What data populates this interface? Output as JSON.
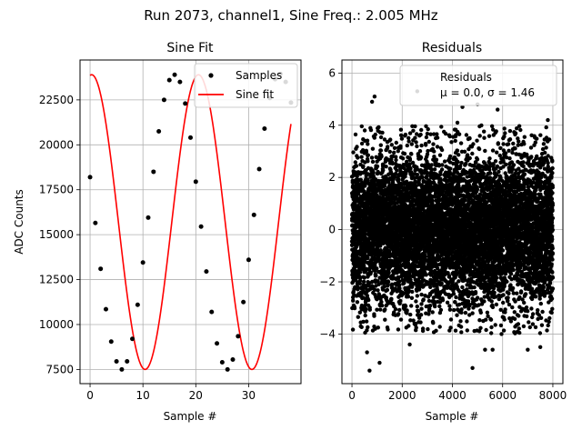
{
  "suptitle": "Run 2073, channel1, Sine Freq.: 2.005 MHz",
  "chart_data": [
    {
      "type": "scatter",
      "title": "Sine Fit",
      "xlabel": "Sample #",
      "ylabel": "ADC Counts",
      "xlim": [
        -1.9,
        39.9
      ],
      "ylim": [
        6710,
        24720
      ],
      "xticks": [
        0,
        10,
        20,
        30
      ],
      "xtick_labels": [
        "0",
        "10",
        "20",
        "30"
      ],
      "yticks": [
        7500,
        10000,
        12500,
        15000,
        17500,
        20000,
        22500
      ],
      "ytick_labels": [
        "7500",
        "10000",
        "12500",
        "15000",
        "17500",
        "20000",
        "22500"
      ],
      "grid": true,
      "legend_position": "top-right",
      "legend": [
        "Samples",
        "Sine fit"
      ],
      "series": [
        {
          "name": "Samples",
          "style": "points",
          "color": "#000000",
          "x": [
            0,
            1,
            2,
            3,
            4,
            5,
            6,
            7,
            8,
            9,
            10,
            11,
            12,
            13,
            14,
            15,
            16,
            17,
            18,
            19,
            20,
            21,
            22,
            23,
            24,
            25,
            26,
            27,
            28,
            29,
            30,
            31,
            32,
            33,
            34,
            35,
            36,
            37,
            38
          ],
          "y": [
            18200,
            15650,
            13100,
            10850,
            9050,
            7950,
            7500,
            7950,
            9200,
            11100,
            13450,
            15950,
            18500,
            20750,
            22500,
            23600,
            23900,
            23500,
            22300,
            20400,
            17950,
            15450,
            12950,
            10700,
            8950,
            7900,
            7500,
            8050,
            9350,
            11250,
            13600,
            16100,
            18650,
            20900,
            22600,
            23650,
            23950,
            23500,
            22350
          ]
        },
        {
          "name": "Sine fit",
          "style": "line",
          "color": "#ff0000",
          "model": {
            "offset": 15700,
            "amplitude": 8200,
            "period": 20.2,
            "phase_deg": 84.5
          }
        }
      ]
    },
    {
      "type": "scatter",
      "title": "Residuals",
      "xlabel": "Sample #",
      "ylabel": "",
      "xlim": [
        -400,
        8400
      ],
      "ylim": [
        -5.9,
        6.5
      ],
      "xticks": [
        0,
        2000,
        4000,
        6000,
        8000
      ],
      "xtick_labels": [
        "0",
        "2000",
        "4000",
        "6000",
        "8000"
      ],
      "yticks": [
        -4,
        -2,
        0,
        2,
        4,
        6
      ],
      "ytick_labels": [
        "−4",
        "−2",
        "0",
        "2",
        "4",
        "6"
      ],
      "grid": true,
      "legend_position": "top-right",
      "legend": [
        "Residuals",
        "μ = 0.0, σ = 1.46"
      ],
      "series": [
        {
          "name": "Residuals",
          "style": "points",
          "color": "#000000",
          "distribution": {
            "n": 8000,
            "mean": 0.0,
            "std": 1.46,
            "x_range": [
              0,
              8000
            ]
          },
          "extreme_points": [
            [
              2600,
              5.3
            ],
            [
              900,
              5.1
            ],
            [
              800,
              4.9
            ],
            [
              5000,
              4.8
            ],
            [
              4400,
              4.7
            ],
            [
              5800,
              4.6
            ],
            [
              7800,
              4.2
            ],
            [
              4200,
              4.1
            ],
            [
              4800,
              -5.3
            ],
            [
              700,
              -5.4
            ],
            [
              1100,
              -5.1
            ],
            [
              600,
              -4.7
            ],
            [
              5300,
              -4.6
            ],
            [
              7500,
              -4.5
            ],
            [
              5600,
              -4.6
            ],
            [
              7000,
              -4.6
            ],
            [
              2300,
              -4.4
            ]
          ]
        }
      ]
    }
  ]
}
